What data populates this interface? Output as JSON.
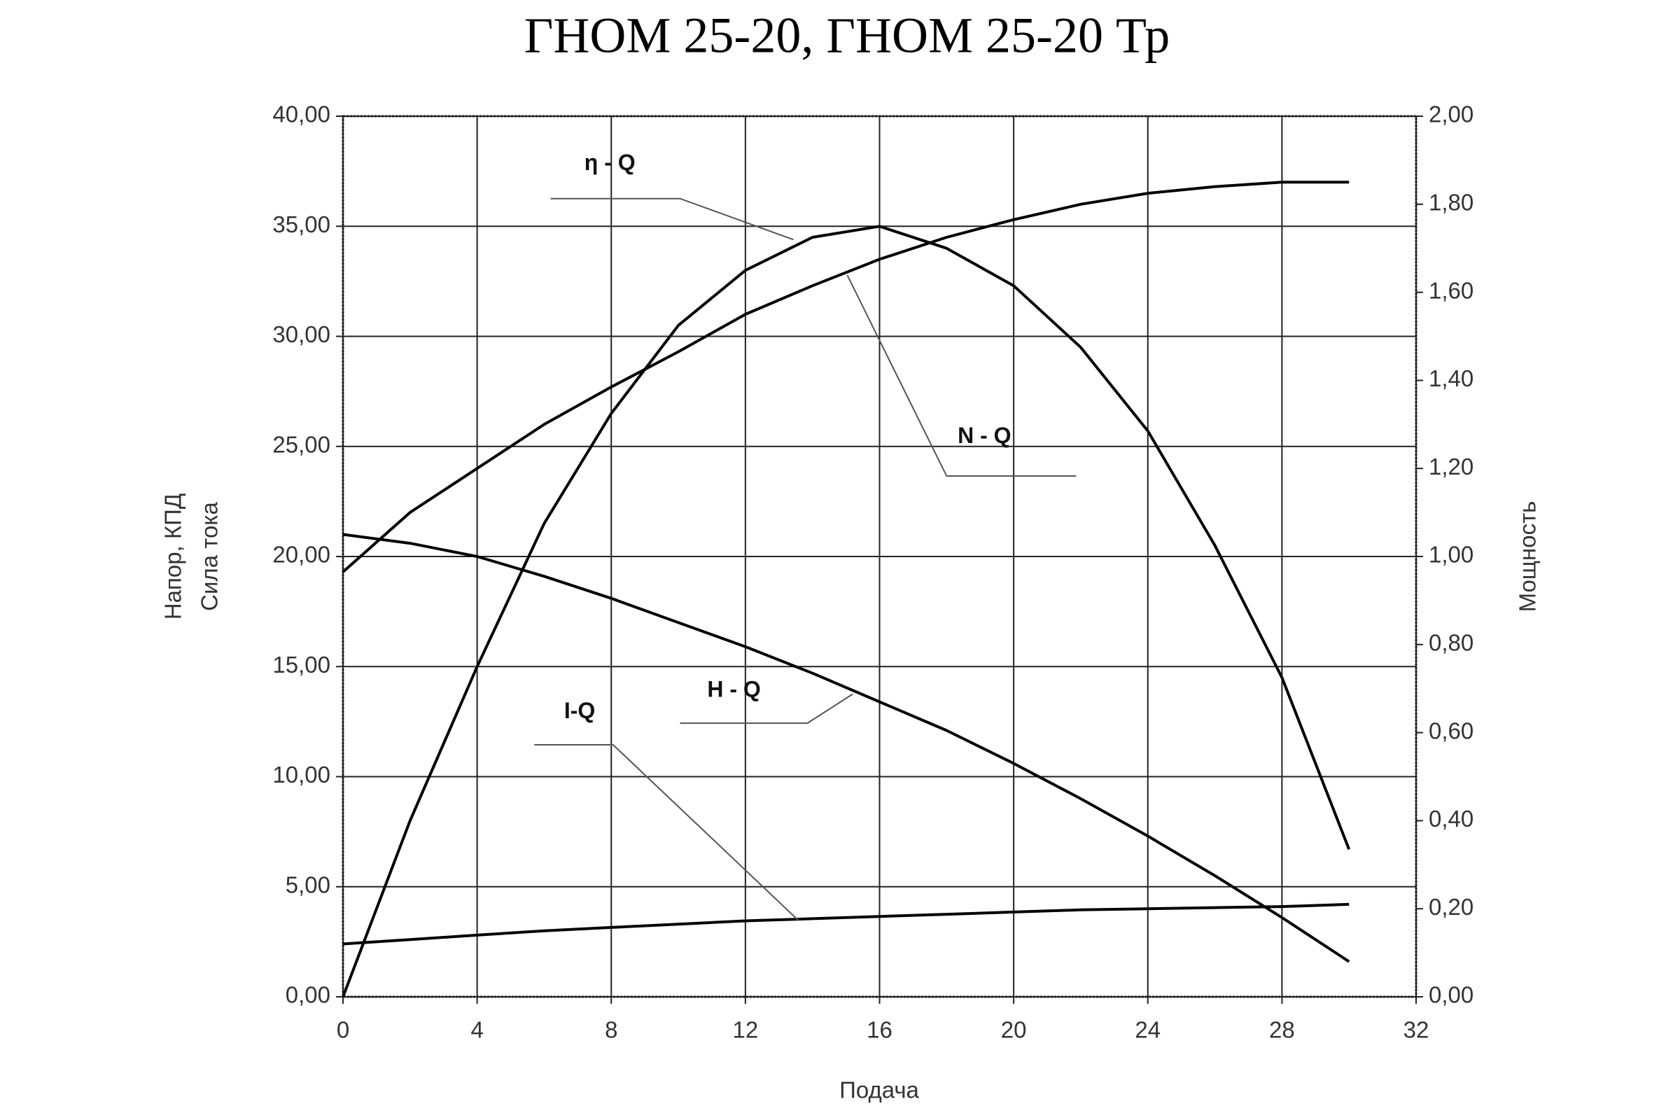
{
  "chart_data": {
    "type": "line",
    "title": "ГНОМ 25-20, ГНОМ 25-20 Тр",
    "x_label": "Подача",
    "y_label": [
      "Напор, КПД",
      "Сила тока"
    ],
    "y2_label": "Мощность",
    "x": [
      0,
      2,
      4,
      6,
      8,
      10,
      12,
      14,
      16,
      18,
      20,
      22,
      24,
      26,
      28,
      30
    ],
    "series": [
      {
        "name": "η - Q",
        "color": "#000000",
        "values": [
          0,
          8,
          15,
          21.5,
          26.5,
          30.5,
          33,
          34.5,
          35,
          34,
          32.3,
          29.5,
          25.7,
          20.5,
          14.5,
          6.7
        ]
      },
      {
        "name": "N - Q",
        "color": "#000000",
        "axis": "y2",
        "values": [
          0.965,
          1.1,
          1.2,
          1.3,
          1.385,
          1.465,
          1.55,
          1.615,
          1.675,
          1.725,
          1.765,
          1.8,
          1.825,
          1.84,
          1.85,
          1.85
        ]
      },
      {
        "name": "H - Q",
        "color": "#000000",
        "values": [
          21,
          20.6,
          20,
          19.1,
          18.1,
          17,
          15.9,
          14.7,
          13.4,
          12.1,
          10.6,
          9,
          7.3,
          5.5,
          3.6,
          1.6
        ]
      },
      {
        "name": "I-Q",
        "color": "#000000",
        "values": [
          2.4,
          2.6,
          2.8,
          3,
          3.15,
          3.3,
          3.45,
          3.55,
          3.65,
          3.75,
          3.85,
          3.95,
          4,
          4.05,
          4.1,
          4.2
        ]
      }
    ],
    "xlim": [
      0,
      32
    ],
    "xticks": [
      0,
      4,
      8,
      12,
      16,
      20,
      24,
      28,
      32
    ],
    "ylim": [
      0,
      40
    ],
    "yticks": [
      {
        "value": 0,
        "label": "0,00"
      },
      {
        "value": 5,
        "label": "5,00"
      },
      {
        "value": 10,
        "label": "10,00"
      },
      {
        "value": 15,
        "label": "15,00"
      },
      {
        "value": 20,
        "label": "20,00"
      },
      {
        "value": 25,
        "label": "25,00"
      },
      {
        "value": 30,
        "label": "30,00"
      },
      {
        "value": 35,
        "label": "35,00"
      },
      {
        "value": 40,
        "label": "40,00"
      }
    ],
    "y2lim": [
      0,
      2
    ],
    "y2ticks": [
      {
        "value": 0,
        "label": "0,00"
      },
      {
        "value": 0.2,
        "label": "0,20"
      },
      {
        "value": 0.4,
        "label": "0,40"
      },
      {
        "value": 0.6,
        "label": "0,60"
      },
      {
        "value": 0.8,
        "label": "0,80"
      },
      {
        "value": 1,
        "label": "1,00"
      },
      {
        "value": 1.2,
        "label": "1,20"
      },
      {
        "value": 1.4,
        "label": "1,40"
      },
      {
        "value": 1.6,
        "label": "1,60"
      },
      {
        "value": 1.8,
        "label": "1,80"
      },
      {
        "value": 2,
        "label": "2,00"
      }
    ],
    "grid": true
  }
}
